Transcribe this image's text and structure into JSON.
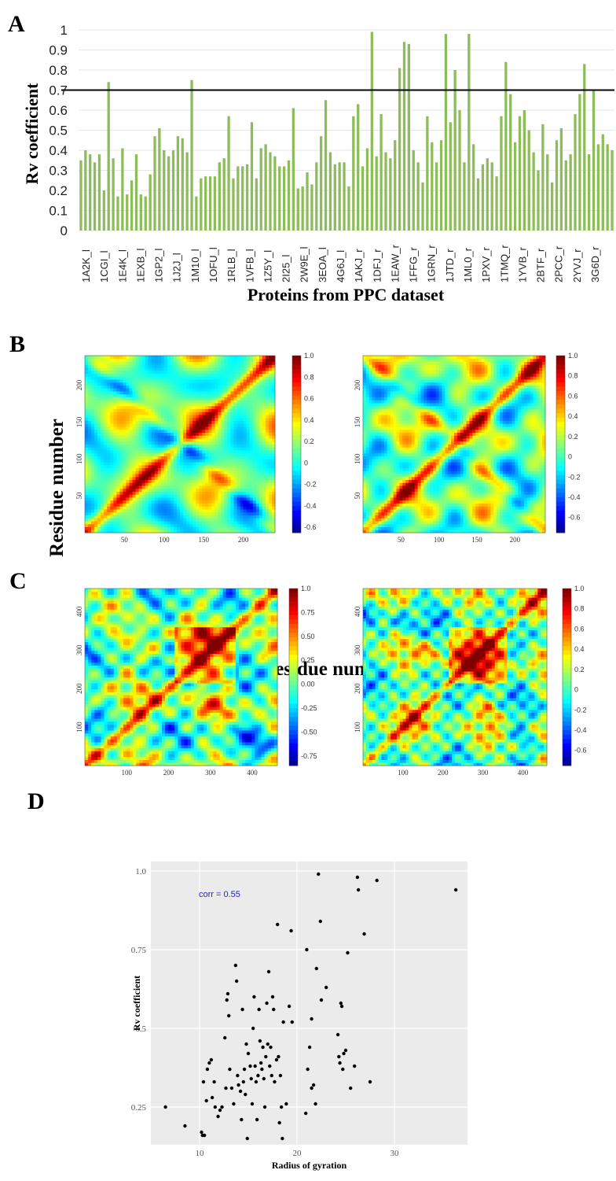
{
  "panels": {
    "a": {
      "letter": "A",
      "ylabel": "Rv coefficient",
      "xlabel": "Proteins from PPC dataset"
    },
    "b": {
      "letter": "B"
    },
    "c": {
      "letter": "C"
    },
    "d": {
      "letter": "D"
    },
    "bc_ylabel": "Residue number",
    "bc_xlabel": "Residue number"
  },
  "colors": {
    "bar": "#8cbd5a",
    "scatter_bg": "#ebebeb",
    "point": "#000000",
    "threshold": "#000000",
    "corr_text": "#2222cc"
  },
  "chart_data": [
    {
      "type": "bar",
      "panel": "A",
      "title": "",
      "xlabel": "Proteins from PPC dataset",
      "ylabel": "Rv coefficient",
      "ylim": [
        0,
        1
      ],
      "yticks": [
        "0",
        "0.1",
        "0.2",
        "0.3",
        "0.4",
        "0.5",
        "0.6",
        "0.7",
        "0.8",
        "0.9",
        "1"
      ],
      "threshold": 0.7,
      "grid": true,
      "x_tick_labels": [
        "1A2K_l",
        "1CGI_l",
        "1E4K_l",
        "1EXB_l",
        "1GP2_l",
        "1J2J_l",
        "1M10_l",
        "1OFU_l",
        "1RLB_l",
        "1VFB_l",
        "1Z5Y_l",
        "2I25_l",
        "2W9E_l",
        "3EOA_l",
        "4G6J_l",
        "1AKJ_r",
        "1DFJ_r",
        "1EAW_r",
        "1FFG_r",
        "1GRN_r",
        "1JTD_r",
        "1ML0_r",
        "1PXV_r",
        "1TMQ_r",
        "1YVB_r",
        "2BTF_r",
        "2PCC_r",
        "2YVJ_r",
        "3G6D_r"
      ],
      "values": [
        0.35,
        0.4,
        0.38,
        0.34,
        0.38,
        0.2,
        0.74,
        0.36,
        0.17,
        0.41,
        0.18,
        0.25,
        0.38,
        0.18,
        0.17,
        0.28,
        0.47,
        0.51,
        0.4,
        0.37,
        0.4,
        0.47,
        0.46,
        0.39,
        0.75,
        0.17,
        0.26,
        0.27,
        0.27,
        0.27,
        0.34,
        0.36,
        0.57,
        0.26,
        0.32,
        0.32,
        0.33,
        0.54,
        0.26,
        0.41,
        0.43,
        0.39,
        0.37,
        0.32,
        0.32,
        0.35,
        0.61,
        0.21,
        0.22,
        0.29,
        0.23,
        0.34,
        0.47,
        0.65,
        0.39,
        0.33,
        0.34,
        0.34,
        0.22,
        0.57,
        0.63,
        0.32,
        0.41,
        0.99,
        0.37,
        0.58,
        0.39,
        0.36,
        0.45,
        0.81,
        0.94,
        0.93,
        0.4,
        0.34,
        0.24,
        0.57,
        0.44,
        0.34,
        0.45,
        0.98,
        0.54,
        0.8,
        0.6,
        0.34,
        0.98,
        0.43,
        0.26,
        0.33,
        0.36,
        0.34,
        0.27,
        0.57,
        0.84,
        0.68,
        0.44,
        0.57,
        0.6,
        0.5,
        0.39,
        0.3,
        0.53,
        0.38,
        0.24,
        0.45,
        0.51,
        0.35,
        0.38,
        0.58,
        0.68,
        0.83,
        0.38,
        0.7,
        0.43,
        0.48,
        0.43,
        0.4
      ]
    },
    {
      "type": "heatmap",
      "panel": "B-left",
      "x_ticks": [
        "50",
        "100",
        "150",
        "200"
      ],
      "y_ticks": [
        "50",
        "100",
        "150",
        "200"
      ],
      "colorbar_ticks": [
        "1.0",
        "0.8",
        "0.6",
        "0.4",
        "0.2",
        "0",
        "-0.2",
        "-0.4",
        "-0.6"
      ],
      "range": [
        -0.65,
        1.0
      ]
    },
    {
      "type": "heatmap",
      "panel": "B-right",
      "x_ticks": [
        "50",
        "100",
        "150",
        "200"
      ],
      "y_ticks": [
        "50",
        "100",
        "150",
        "200"
      ],
      "colorbar_ticks": [
        "1.0",
        "0.8",
        "0.6",
        "0.4",
        "0.2",
        "0",
        "-0.2",
        "-0.4",
        "-0.6"
      ],
      "range": [
        -0.75,
        1.0
      ]
    },
    {
      "type": "heatmap",
      "panel": "C-left",
      "x_ticks": [
        "100",
        "200",
        "300",
        "400"
      ],
      "y_ticks": [
        "100",
        "200",
        "300",
        "400"
      ],
      "colorbar_ticks": [
        "1.0",
        "0.75",
        "0.50",
        "0.25",
        "0.00",
        "-0.25",
        "-0.50",
        "-0.75"
      ],
      "range": [
        -0.85,
        1.0
      ]
    },
    {
      "type": "heatmap",
      "panel": "C-right",
      "x_ticks": [
        "100",
        "200",
        "300",
        "400"
      ],
      "y_ticks": [
        "100",
        "200",
        "300",
        "400"
      ],
      "colorbar_ticks": [
        "1.0",
        "0.8",
        "0.6",
        "0.4",
        "0.2",
        "0",
        "-0.2",
        "-0.4",
        "-0.6"
      ],
      "range": [
        -0.75,
        1.0
      ]
    },
    {
      "type": "scatter",
      "panel": "D",
      "xlabel": "Radius of gyration",
      "ylabel": "Rv coefficient",
      "annotation": "corr = 0.55",
      "xlim": [
        5,
        37.5
      ],
      "ylim": [
        0.13,
        1.03
      ],
      "x_ticks": [
        "10",
        "20",
        "30"
      ],
      "y_ticks": [
        "0.25",
        "0.5",
        "0.75",
        "1.0"
      ],
      "points": [
        [
          6.5,
          0.25
        ],
        [
          8.5,
          0.19
        ],
        [
          10.2,
          0.17
        ],
        [
          10.3,
          0.16
        ],
        [
          10.5,
          0.16
        ],
        [
          10.7,
          0.27
        ],
        [
          10.4,
          0.33
        ],
        [
          10.8,
          0.37
        ],
        [
          11.2,
          0.4
        ],
        [
          11.0,
          0.39
        ],
        [
          11.5,
          0.33
        ],
        [
          11.3,
          0.28
        ],
        [
          11.6,
          0.25
        ],
        [
          11.9,
          0.22
        ],
        [
          12.1,
          0.24
        ],
        [
          12.3,
          0.25
        ],
        [
          12.6,
          0.47
        ],
        [
          12.8,
          0.59
        ],
        [
          12.9,
          0.61
        ],
        [
          13.0,
          0.54
        ],
        [
          12.7,
          0.31
        ],
        [
          13.1,
          0.37
        ],
        [
          13.3,
          0.31
        ],
        [
          13.5,
          0.26
        ],
        [
          13.7,
          0.7
        ],
        [
          13.8,
          0.65
        ],
        [
          13.9,
          0.35
        ],
        [
          14.0,
          0.32
        ],
        [
          14.2,
          0.3
        ],
        [
          14.3,
          0.21
        ],
        [
          14.4,
          0.56
        ],
        [
          14.5,
          0.33
        ],
        [
          14.6,
          0.37
        ],
        [
          14.7,
          0.29
        ],
        [
          14.8,
          0.45
        ],
        [
          14.9,
          0.15
        ],
        [
          15.0,
          0.42
        ],
        [
          15.2,
          0.38
        ],
        [
          15.3,
          0.34
        ],
        [
          15.4,
          0.26
        ],
        [
          15.5,
          0.5
        ],
        [
          15.6,
          0.6
        ],
        [
          15.7,
          0.38
        ],
        [
          15.8,
          0.33
        ],
        [
          15.9,
          0.21
        ],
        [
          16.0,
          0.35
        ],
        [
          16.1,
          0.56
        ],
        [
          16.2,
          0.46
        ],
        [
          16.3,
          0.39
        ],
        [
          16.4,
          0.37
        ],
        [
          16.5,
          0.44
        ],
        [
          16.6,
          0.34
        ],
        [
          16.7,
          0.25
        ],
        [
          16.8,
          0.41
        ],
        [
          16.9,
          0.58
        ],
        [
          17.0,
          0.45
        ],
        [
          17.1,
          0.68
        ],
        [
          17.2,
          0.38
        ],
        [
          17.3,
          0.44
        ],
        [
          17.4,
          0.35
        ],
        [
          17.5,
          0.6
        ],
        [
          17.6,
          0.56
        ],
        [
          17.7,
          0.33
        ],
        [
          17.9,
          0.4
        ],
        [
          18.0,
          0.83
        ],
        [
          18.1,
          0.41
        ],
        [
          18.2,
          0.2
        ],
        [
          18.3,
          0.35
        ],
        [
          18.4,
          0.25
        ],
        [
          18.5,
          0.15
        ],
        [
          18.6,
          0.52
        ],
        [
          18.9,
          0.26
        ],
        [
          19.2,
          0.57
        ],
        [
          19.4,
          0.81
        ],
        [
          19.5,
          0.52
        ],
        [
          20.9,
          0.23
        ],
        [
          21.0,
          0.75
        ],
        [
          21.1,
          0.37
        ],
        [
          21.3,
          0.44
        ],
        [
          21.5,
          0.31
        ],
        [
          21.7,
          0.32
        ],
        [
          21.9,
          0.26
        ],
        [
          21.5,
          0.53
        ],
        [
          22.0,
          0.69
        ],
        [
          22.2,
          0.99
        ],
        [
          22.4,
          0.84
        ],
        [
          22.5,
          0.59
        ],
        [
          23.0,
          0.63
        ],
        [
          24.2,
          0.48
        ],
        [
          24.4,
          0.39
        ],
        [
          24.5,
          0.58
        ],
        [
          24.6,
          0.57
        ],
        [
          24.3,
          0.41
        ],
        [
          24.7,
          0.37
        ],
        [
          24.8,
          0.42
        ],
        [
          25.0,
          0.43
        ],
        [
          25.2,
          0.74
        ],
        [
          25.5,
          0.31
        ],
        [
          25.9,
          0.38
        ],
        [
          26.2,
          0.98
        ],
        [
          26.3,
          0.94
        ],
        [
          26.9,
          0.8
        ],
        [
          27.5,
          0.33
        ],
        [
          28.2,
          0.97
        ],
        [
          36.3,
          0.94
        ]
      ]
    }
  ]
}
